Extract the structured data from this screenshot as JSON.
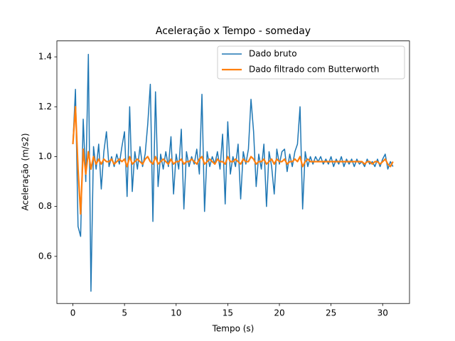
{
  "chart_data": {
    "type": "line",
    "title": "Aceleração x Tempo - someday",
    "x_label": "Tempo (s)",
    "y_label": "Aceleração (m/s2)",
    "x": [
      0,
      0.25,
      0.5,
      0.75,
      1,
      1.25,
      1.5,
      1.75,
      2,
      2.25,
      2.5,
      2.75,
      3,
      3.25,
      3.5,
      3.75,
      4,
      4.25,
      4.5,
      4.75,
      5,
      5.25,
      5.5,
      5.75,
      6,
      6.25,
      6.5,
      6.75,
      7,
      7.25,
      7.5,
      7.75,
      8,
      8.25,
      8.5,
      8.75,
      9,
      9.25,
      9.5,
      9.75,
      10,
      10.25,
      10.5,
      10.75,
      11,
      11.25,
      11.5,
      11.75,
      12,
      12.25,
      12.5,
      12.75,
      13,
      13.25,
      13.5,
      13.75,
      14,
      14.25,
      14.5,
      14.75,
      15,
      15.25,
      15.5,
      15.75,
      16,
      16.25,
      16.5,
      16.75,
      17,
      17.25,
      17.5,
      17.75,
      18,
      18.25,
      18.5,
      18.75,
      19,
      19.25,
      19.5,
      19.75,
      20,
      20.25,
      20.5,
      20.75,
      21,
      21.25,
      21.5,
      21.75,
      22,
      22.25,
      22.5,
      22.75,
      23,
      23.25,
      23.5,
      23.75,
      24,
      24.25,
      24.5,
      24.75,
      25,
      25.25,
      25.5,
      25.75,
      26,
      26.25,
      26.5,
      26.75,
      27,
      27.25,
      27.5,
      27.75,
      28,
      28.25,
      28.5,
      28.75,
      29,
      29.25,
      29.5,
      29.75,
      30,
      30.25,
      30.5,
      30.75,
      31
    ],
    "series": [
      {
        "name": "Dado bruto",
        "color": "#1f77b4",
        "width": 1.5,
        "values": [
          1.05,
          1.27,
          0.72,
          0.68,
          1.15,
          0.9,
          1.41,
          0.46,
          1.04,
          0.95,
          1.05,
          0.87,
          1.02,
          1.1,
          0.96,
          1.0,
          0.96,
          1.01,
          0.97,
          1.04,
          1.1,
          0.84,
          1.2,
          0.86,
          1.02,
          0.95,
          1.04,
          0.96,
          1.01,
          1.13,
          1.29,
          0.74,
          1.26,
          0.88,
          1.01,
          0.95,
          1.02,
          0.96,
          1.08,
          0.85,
          1.01,
          0.95,
          1.11,
          0.79,
          1.02,
          0.96,
          1.0,
          0.97,
          1.03,
          0.93,
          1.25,
          0.78,
          1.02,
          0.96,
          1.0,
          0.97,
          1.02,
          0.95,
          1.09,
          0.81,
          1.14,
          0.93,
          1.0,
          0.96,
          1.05,
          0.83,
          1.02,
          0.97,
          1.03,
          1.23,
          1.1,
          0.88,
          1.01,
          0.95,
          1.05,
          0.8,
          1.02,
          0.96,
          0.85,
          1.03,
          0.97,
          1.02,
          1.03,
          0.94,
          1.01,
          0.96,
          1.02,
          1.05,
          1.2,
          0.79,
          1.02,
          0.96,
          1.0,
          0.97,
          1.0,
          0.98,
          1.0,
          0.97,
          0.99,
          0.97,
          1.0,
          0.96,
          0.99,
          0.97,
          1.0,
          0.96,
          0.99,
          0.97,
          0.99,
          0.96,
          0.99,
          0.97,
          0.98,
          0.96,
          0.99,
          0.97,
          0.98,
          0.96,
          0.99,
          0.96,
          0.99,
          1.01,
          0.95,
          0.98,
          0.96
        ]
      },
      {
        "name": "Dado filtrado com Butterworth",
        "color": "#ff7f0e",
        "width": 2.2,
        "values": [
          1.05,
          1.2,
          0.95,
          0.77,
          1.03,
          0.93,
          1.02,
          0.95,
          1.0,
          0.97,
          0.99,
          0.97,
          0.99,
          0.98,
          0.98,
          0.99,
          0.97,
          0.98,
          0.99,
          0.98,
          0.99,
          0.96,
          1.0,
          0.97,
          0.98,
          0.99,
          0.98,
          0.97,
          0.99,
          1.0,
          0.98,
          0.97,
          1.0,
          0.97,
          0.98,
          0.99,
          0.98,
          0.97,
          0.99,
          0.97,
          0.98,
          0.98,
          0.99,
          0.97,
          0.98,
          0.98,
          0.99,
          0.98,
          0.97,
          0.99,
          1.0,
          0.97,
          0.98,
          0.99,
          0.98,
          0.97,
          0.99,
          0.98,
          0.98,
          0.97,
          1.0,
          0.98,
          0.98,
          0.99,
          0.98,
          0.97,
          0.99,
          0.98,
          0.98,
          1.0,
          0.99,
          0.97,
          0.98,
          0.98,
          0.99,
          0.97,
          0.98,
          0.99,
          0.97,
          0.99,
          0.98,
          0.98,
          0.99,
          0.97,
          0.98,
          0.98,
          0.99,
          0.98,
          1.0,
          0.96,
          0.98,
          0.99,
          0.98,
          0.98,
          0.98,
          0.98,
          0.98,
          0.98,
          0.98,
          0.98,
          0.98,
          0.98,
          0.98,
          0.98,
          0.98,
          0.98,
          0.98,
          0.98,
          0.98,
          0.98,
          0.98,
          0.98,
          0.98,
          0.97,
          0.98,
          0.98,
          0.97,
          0.98,
          0.98,
          0.97,
          0.98,
          0.99,
          0.97,
          0.96,
          0.98
        ]
      }
    ],
    "xlim": [
      -1.55,
      32.6
    ],
    "ylim": [
      0.411,
      1.464
    ],
    "xticks": [
      0,
      5,
      10,
      15,
      20,
      25,
      30
    ],
    "yticks": [
      0.6,
      0.8,
      {
        "value": 1,
        "label": "1.0"
      },
      1.2,
      1.4
    ],
    "grid": false,
    "legend": "upper right"
  }
}
